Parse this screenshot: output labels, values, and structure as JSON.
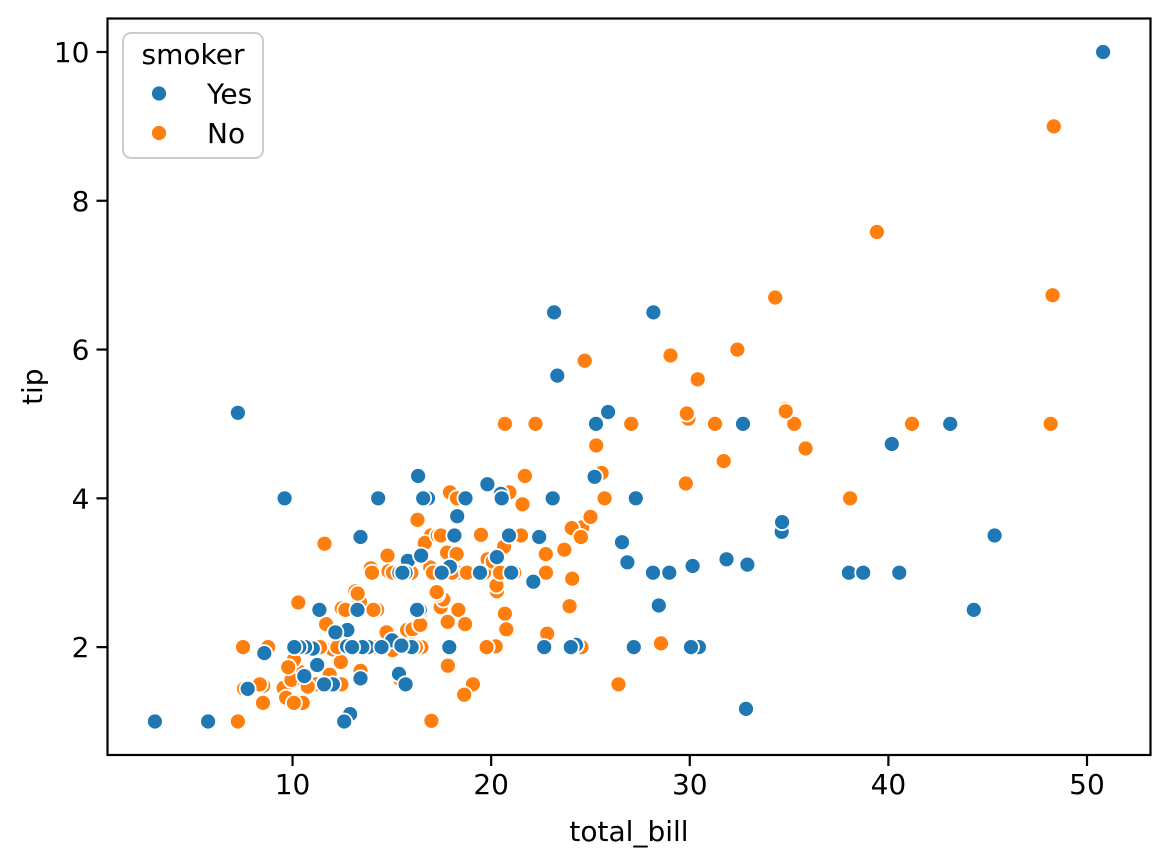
{
  "figure": {
    "background": "#ffffff"
  },
  "chart_data": {
    "type": "scatter",
    "title": "",
    "xlabel": "total_bill",
    "ylabel": "tip",
    "xlim": [
      0.683,
      53.197
    ],
    "ylim": [
      0.55,
      10.45
    ],
    "x_ticks": [
      10,
      20,
      30,
      40,
      50
    ],
    "y_ticks": [
      2,
      4,
      6,
      8,
      10
    ],
    "grid": false,
    "marker": {
      "shape": "circle",
      "edge_color": "#ffffff"
    },
    "legend": {
      "title": "smoker",
      "position": "upper-left",
      "entries": [
        {
          "label": "Yes",
          "color": "#1f77b4"
        },
        {
          "label": "No",
          "color": "#ff7f0e"
        }
      ]
    },
    "series": [
      {
        "name": "No",
        "color": "#ff7f0e",
        "points": [
          [
            16.99,
            1.01
          ],
          [
            10.34,
            1.66
          ],
          [
            21.01,
            3.5
          ],
          [
            23.68,
            3.31
          ],
          [
            24.59,
            3.61
          ],
          [
            25.29,
            4.71
          ],
          [
            8.77,
            2.0
          ],
          [
            26.88,
            3.12
          ],
          [
            15.04,
            1.96
          ],
          [
            14.78,
            3.23
          ],
          [
            10.27,
            1.71
          ],
          [
            35.26,
            5.0
          ],
          [
            15.42,
            1.57
          ],
          [
            18.43,
            3.0
          ],
          [
            14.83,
            3.02
          ],
          [
            21.58,
            3.92
          ],
          [
            10.33,
            1.67
          ],
          [
            16.29,
            3.71
          ],
          [
            16.97,
            3.5
          ],
          [
            20.65,
            3.35
          ],
          [
            17.92,
            4.08
          ],
          [
            20.29,
            2.75
          ],
          [
            15.77,
            2.23
          ],
          [
            39.42,
            7.58
          ],
          [
            19.82,
            3.18
          ],
          [
            17.81,
            2.34
          ],
          [
            13.37,
            2.0
          ],
          [
            12.69,
            2.0
          ],
          [
            21.7,
            4.3
          ],
          [
            19.65,
            3.0
          ],
          [
            9.55,
            1.45
          ],
          [
            18.35,
            2.5
          ],
          [
            15.06,
            3.0
          ],
          [
            20.69,
            2.45
          ],
          [
            17.78,
            3.27
          ],
          [
            24.06,
            3.6
          ],
          [
            16.31,
            2.0
          ],
          [
            16.93,
            3.07
          ],
          [
            18.69,
            2.31
          ],
          [
            31.27,
            5.0
          ],
          [
            16.04,
            2.24
          ],
          [
            17.46,
            2.54
          ],
          [
            13.94,
            3.06
          ],
          [
            9.68,
            1.32
          ],
          [
            30.4,
            5.6
          ],
          [
            18.29,
            3.0
          ],
          [
            22.23,
            5.0
          ],
          [
            32.4,
            6.0
          ],
          [
            28.55,
            2.05
          ],
          [
            18.04,
            3.0
          ],
          [
            12.54,
            2.5
          ],
          [
            10.29,
            2.6
          ],
          [
            34.81,
            5.2
          ],
          [
            9.94,
            1.56
          ],
          [
            25.56,
            4.34
          ],
          [
            19.49,
            3.51
          ],
          [
            26.41,
            1.5
          ],
          [
            48.27,
            6.73
          ],
          [
            17.59,
            2.64
          ],
          [
            20.08,
            3.15
          ],
          [
            16.45,
            2.47
          ],
          [
            20.23,
            2.01
          ],
          [
            12.02,
            1.97
          ],
          [
            17.07,
            3.0
          ],
          [
            14.73,
            2.2
          ],
          [
            10.51,
            1.25
          ],
          [
            27.2,
            4.0
          ],
          [
            22.76,
            3.0
          ],
          [
            17.29,
            2.71
          ],
          [
            16.66,
            3.4
          ],
          [
            10.07,
            1.83
          ],
          [
            15.98,
            2.03
          ],
          [
            34.83,
            5.17
          ],
          [
            13.03,
            2.0
          ],
          [
            18.28,
            4.0
          ],
          [
            24.71,
            5.85
          ],
          [
            21.16,
            3.0
          ],
          [
            22.49,
            3.5
          ],
          [
            22.75,
            3.25
          ],
          [
            12.46,
            1.5
          ],
          [
            20.92,
            4.08
          ],
          [
            18.24,
            3.76
          ],
          [
            14.0,
            3.0
          ],
          [
            7.25,
            1.0
          ],
          [
            38.07,
            4.0
          ],
          [
            23.95,
            2.55
          ],
          [
            25.71,
            4.0
          ],
          [
            17.31,
            3.5
          ],
          [
            29.93,
            5.07
          ],
          [
            10.65,
            1.5
          ],
          [
            12.43,
            1.8
          ],
          [
            24.08,
            2.92
          ],
          [
            11.69,
            2.31
          ],
          [
            13.42,
            1.68
          ],
          [
            14.26,
            2.5
          ],
          [
            15.95,
            2.0
          ],
          [
            12.48,
            2.52
          ],
          [
            29.8,
            4.2
          ],
          [
            8.52,
            1.48
          ],
          [
            14.52,
            2.0
          ],
          [
            11.38,
            2.0
          ],
          [
            22.82,
            2.18
          ],
          [
            19.08,
            1.5
          ],
          [
            20.27,
            2.83
          ],
          [
            11.17,
            1.5
          ],
          [
            12.26,
            2.0
          ],
          [
            18.26,
            3.25
          ],
          [
            8.51,
            1.25
          ],
          [
            10.33,
            2.0
          ],
          [
            14.15,
            2.0
          ],
          [
            13.16,
            2.75
          ],
          [
            17.47,
            3.5
          ],
          [
            34.3,
            6.7
          ],
          [
            41.19,
            5.0
          ],
          [
            27.05,
            5.0
          ],
          [
            16.43,
            2.3
          ],
          [
            8.35,
            1.5
          ],
          [
            18.64,
            1.36
          ],
          [
            11.87,
            1.63
          ],
          [
            9.78,
            1.73
          ],
          [
            7.51,
            2.0
          ],
          [
            14.07,
            2.5
          ],
          [
            13.13,
            2.0
          ],
          [
            17.26,
            2.74
          ],
          [
            24.55,
            2.0
          ],
          [
            19.77,
            2.0
          ],
          [
            29.85,
            5.14
          ],
          [
            48.17,
            5.0
          ],
          [
            25.0,
            3.75
          ],
          [
            13.39,
            2.61
          ],
          [
            16.49,
            2.0
          ],
          [
            21.5,
            3.5
          ],
          [
            12.66,
            2.5
          ],
          [
            16.21,
            2.0
          ],
          [
            13.81,
            2.0
          ],
          [
            24.52,
            3.48
          ],
          [
            20.76,
            2.24
          ],
          [
            31.71,
            4.5
          ],
          [
            20.69,
            5.0
          ],
          [
            7.56,
            1.44
          ],
          [
            48.33,
            9.0
          ],
          [
            15.98,
            3.0
          ],
          [
            20.45,
            3.0
          ],
          [
            13.28,
            2.72
          ],
          [
            11.61,
            3.39
          ],
          [
            10.77,
            1.47
          ],
          [
            10.07,
            1.25
          ],
          [
            35.83,
            4.67
          ],
          [
            29.03,
            5.92
          ],
          [
            17.82,
            1.75
          ],
          [
            18.78,
            3.0
          ]
        ]
      },
      {
        "name": "Yes",
        "color": "#1f77b4",
        "points": [
          [
            38.01,
            3.0
          ],
          [
            11.24,
            1.76
          ],
          [
            20.29,
            3.21
          ],
          [
            13.81,
            2.0
          ],
          [
            11.02,
            1.98
          ],
          [
            18.29,
            3.76
          ],
          [
            3.07,
            1.0
          ],
          [
            15.01,
            2.09
          ],
          [
            26.86,
            3.14
          ],
          [
            25.28,
            5.0
          ],
          [
            17.92,
            3.08
          ],
          [
            19.44,
            3.0
          ],
          [
            32.68,
            5.0
          ],
          [
            28.97,
            3.0
          ],
          [
            5.75,
            1.0
          ],
          [
            16.32,
            4.3
          ],
          [
            40.17,
            4.73
          ],
          [
            27.28,
            4.0
          ],
          [
            12.03,
            1.5
          ],
          [
            21.01,
            3.0
          ],
          [
            11.35,
            2.5
          ],
          [
            15.38,
            3.0
          ],
          [
            44.3,
            2.5
          ],
          [
            22.42,
            3.48
          ],
          [
            15.36,
            1.64
          ],
          [
            20.49,
            4.06
          ],
          [
            25.21,
            4.29
          ],
          [
            14.31,
            4.0
          ],
          [
            16.0,
            2.0
          ],
          [
            17.51,
            3.0
          ],
          [
            10.59,
            1.61
          ],
          [
            10.63,
            2.0
          ],
          [
            50.81,
            10.0
          ],
          [
            15.81,
            3.16
          ],
          [
            7.25,
            5.15
          ],
          [
            31.85,
            3.18
          ],
          [
            16.82,
            4.0
          ],
          [
            32.9,
            3.11
          ],
          [
            17.89,
            2.0
          ],
          [
            14.48,
            2.0
          ],
          [
            9.6,
            4.0
          ],
          [
            34.63,
            3.55
          ],
          [
            34.65,
            3.68
          ],
          [
            23.33,
            5.65
          ],
          [
            45.35,
            3.5
          ],
          [
            23.17,
            6.5
          ],
          [
            40.55,
            3.0
          ],
          [
            20.9,
            3.5
          ],
          [
            30.46,
            2.0
          ],
          [
            18.15,
            3.5
          ],
          [
            23.1,
            4.0
          ],
          [
            15.69,
            1.5
          ],
          [
            19.81,
            4.19
          ],
          [
            28.44,
            2.56
          ],
          [
            15.48,
            2.02
          ],
          [
            16.58,
            4.0
          ],
          [
            10.34,
            2.0
          ],
          [
            43.11,
            5.0
          ],
          [
            13.0,
            2.0
          ],
          [
            13.51,
            2.0
          ],
          [
            18.71,
            4.0
          ],
          [
            12.74,
            2.01
          ],
          [
            13.0,
            2.0
          ],
          [
            16.4,
            2.5
          ],
          [
            20.53,
            4.0
          ],
          [
            16.47,
            3.23
          ],
          [
            26.59,
            3.41
          ],
          [
            38.73,
            3.0
          ],
          [
            24.27,
            2.03
          ],
          [
            12.76,
            2.23
          ],
          [
            30.06,
            2.0
          ],
          [
            25.89,
            5.16
          ],
          [
            13.27,
            2.5
          ],
          [
            28.17,
            6.5
          ],
          [
            12.9,
            1.1
          ],
          [
            28.15,
            3.0
          ],
          [
            11.59,
            1.5
          ],
          [
            7.74,
            1.44
          ],
          [
            30.14,
            3.09
          ],
          [
            12.16,
            2.2
          ],
          [
            13.42,
            3.48
          ],
          [
            8.58,
            1.92
          ],
          [
            13.42,
            1.58
          ],
          [
            16.27,
            2.5
          ],
          [
            10.09,
            2.0
          ],
          [
            22.12,
            2.88
          ],
          [
            24.01,
            2.0
          ],
          [
            15.69,
            3.0
          ],
          [
            15.53,
            3.0
          ],
          [
            12.6,
            1.0
          ],
          [
            32.83,
            1.17
          ],
          [
            27.18,
            2.0
          ],
          [
            22.67,
            2.0
          ]
        ]
      }
    ]
  }
}
